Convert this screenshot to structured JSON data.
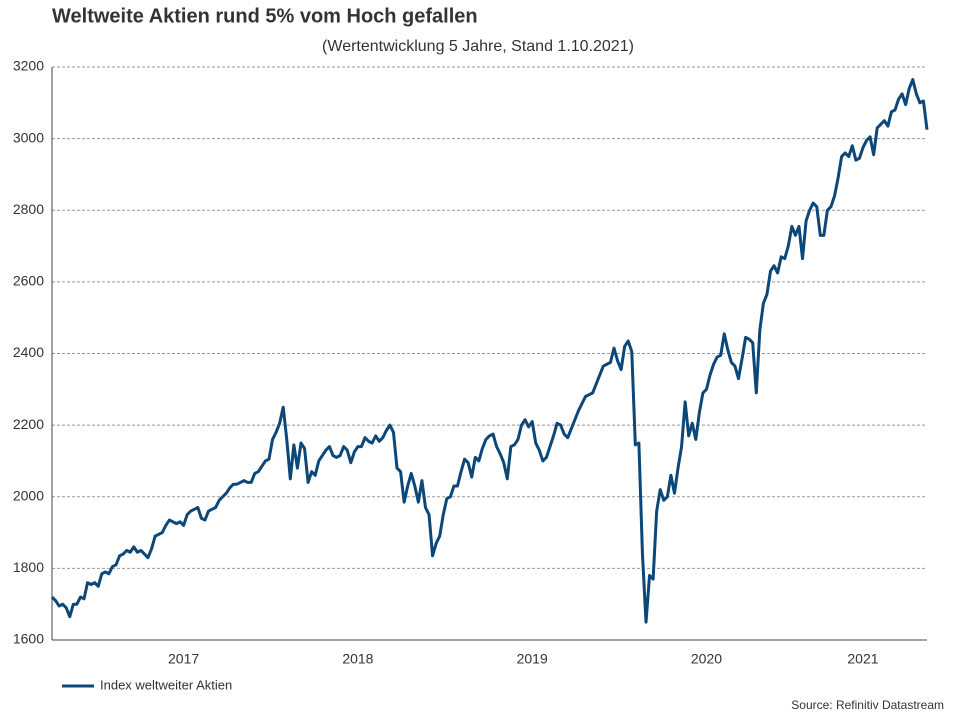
{
  "chart_data": {
    "type": "line",
    "title": "Weltweite Aktien rund 5% vom Hoch gefallen",
    "subtitle": "(Wertentwicklung 5 Jahre, Stand 1.10.2021)",
    "source": "Source: Refinitiv Datastream",
    "categories": [
      null,
      null,
      null,
      null,
      null,
      null,
      null,
      null,
      null,
      null,
      null,
      null,
      null,
      null,
      null,
      null,
      null,
      null,
      null,
      null,
      null,
      null,
      null,
      null,
      null,
      null,
      null,
      null,
      null,
      null,
      null,
      null,
      null,
      null,
      null,
      null,
      null,
      "2017",
      null,
      null,
      null,
      null,
      null,
      null,
      null,
      null,
      null,
      null,
      null,
      null,
      null,
      null,
      null,
      null,
      null,
      null,
      null,
      null,
      null,
      null,
      null,
      null,
      null,
      null,
      null,
      null,
      null,
      null,
      null,
      null,
      null,
      null,
      null,
      null,
      null,
      null,
      null,
      null,
      null,
      null,
      null,
      null,
      null,
      null,
      null,
      null,
      "2018",
      null,
      null,
      null,
      null,
      null,
      null,
      null,
      null,
      null,
      null,
      null,
      null,
      null,
      null,
      null,
      null,
      null,
      null,
      null,
      null,
      null,
      null,
      null,
      null,
      null,
      null,
      null,
      null,
      null,
      null,
      null,
      null,
      null,
      null,
      null,
      null,
      null,
      null,
      null,
      null,
      null,
      null,
      null,
      null,
      null,
      null,
      null,
      null,
      "2019",
      null,
      null,
      null,
      null,
      null,
      null,
      null,
      null,
      null,
      null,
      null,
      null,
      null,
      null,
      null,
      null,
      null,
      null,
      null,
      null,
      null,
      null,
      null,
      null,
      null,
      null,
      null,
      null,
      null,
      null,
      null,
      null,
      null,
      null,
      null,
      null,
      null,
      null,
      null,
      null,
      null,
      null,
      null,
      null,
      null,
      null,
      null,
      null,
      "2020",
      null,
      null,
      null,
      null,
      null,
      null,
      null,
      null,
      null,
      null,
      null,
      null,
      null,
      null,
      null,
      null,
      null,
      null,
      null,
      null,
      null,
      null,
      null,
      null,
      null,
      null,
      null,
      null,
      null,
      null,
      null,
      null,
      null,
      null,
      null,
      null,
      null,
      null,
      null,
      null,
      null,
      null,
      null,
      "2021",
      null,
      null,
      null,
      null,
      null,
      null,
      null,
      null,
      null,
      null,
      null,
      null,
      null,
      null,
      null,
      null,
      null,
      null
    ],
    "series": [
      {
        "name": "Index weltweiter Aktien",
        "color": "#0b4778",
        "values": [
          1720,
          1710,
          1695,
          1700,
          1690,
          1665,
          1700,
          1700,
          1720,
          1715,
          1760,
          1755,
          1760,
          1750,
          1785,
          1790,
          1785,
          1805,
          1810,
          1835,
          1840,
          1850,
          1845,
          1860,
          1845,
          1850,
          1840,
          1830,
          1855,
          1890,
          1895,
          1900,
          1920,
          1935,
          1930,
          1925,
          1930,
          1920,
          1950,
          1960,
          1965,
          1970,
          1940,
          1935,
          1960,
          1965,
          1970,
          1990,
          2000,
          2010,
          2025,
          2035,
          2035,
          2040,
          2045,
          2040,
          2040,
          2065,
          2070,
          2085,
          2100,
          2105,
          2160,
          2180,
          2205,
          2250,
          2160,
          2050,
          2145,
          2080,
          2150,
          2135,
          2040,
          2070,
          2060,
          2100,
          2115,
          2130,
          2140,
          2115,
          2110,
          2115,
          2140,
          2130,
          2095,
          2125,
          2140,
          2140,
          2165,
          2155,
          2150,
          2170,
          2155,
          2165,
          2185,
          2200,
          2180,
          2080,
          2070,
          1985,
          2030,
          2065,
          2030,
          1985,
          2045,
          1970,
          1950,
          1835,
          1870,
          1890,
          1950,
          1995,
          2000,
          2030,
          2030,
          2070,
          2105,
          2095,
          2055,
          2110,
          2100,
          2135,
          2160,
          2170,
          2175,
          2140,
          2120,
          2095,
          2050,
          2140,
          2145,
          2160,
          2200,
          2215,
          2195,
          2210,
          2150,
          2130,
          2100,
          2110,
          2140,
          2170,
          2205,
          2200,
          2175,
          2165,
          2190,
          2215,
          2240,
          2260,
          2280,
          2285,
          2290,
          2315,
          2340,
          2365,
          2370,
          2375,
          2415,
          2380,
          2355,
          2420,
          2435,
          2405,
          2145,
          2150,
          1840,
          1650,
          1780,
          1770,
          1960,
          2020,
          1990,
          2000,
          2060,
          2010,
          2080,
          2140,
          2265,
          2170,
          2205,
          2160,
          2235,
          2290,
          2300,
          2340,
          2370,
          2390,
          2395,
          2455,
          2410,
          2375,
          2365,
          2330,
          2385,
          2445,
          2440,
          2430,
          2290,
          2465,
          2540,
          2565,
          2630,
          2645,
          2625,
          2670,
          2665,
          2700,
          2755,
          2730,
          2755,
          2665,
          2770,
          2800,
          2820,
          2810,
          2730,
          2730,
          2800,
          2810,
          2840,
          2890,
          2950,
          2960,
          2950,
          2980,
          2940,
          2945,
          2975,
          2995,
          3005,
          2955,
          3030,
          3040,
          3050,
          3035,
          3075,
          3080,
          3110,
          3125,
          3095,
          3140,
          3165,
          3125,
          3100,
          3105,
          3025
        ]
      }
    ],
    "ylim": [
      1600,
      3200
    ],
    "yticks": [
      1600,
      1800,
      2000,
      2200,
      2400,
      2600,
      2800,
      3000,
      3200
    ],
    "grid": true
  }
}
